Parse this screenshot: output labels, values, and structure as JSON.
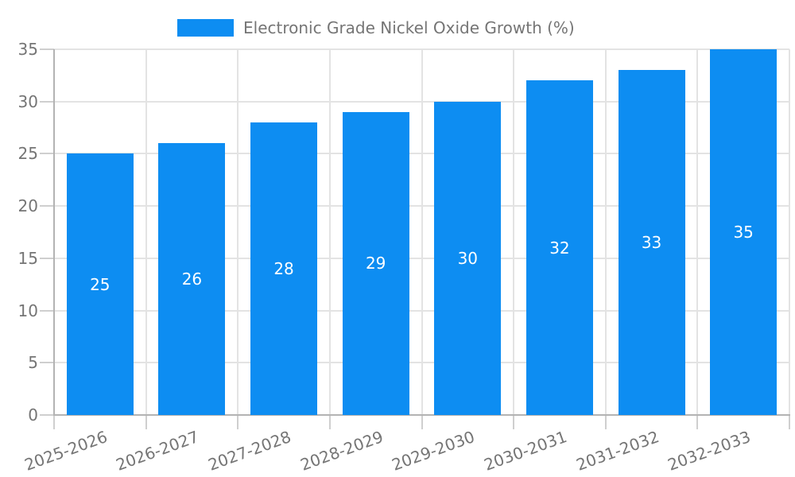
{
  "chart_data": {
    "type": "bar",
    "title": "Electronic Grade Nickel Oxide Growth (%)",
    "categories": [
      "2025-2026",
      "2026-2027",
      "2027-2028",
      "2028-2029",
      "2029-2030",
      "2030-2031",
      "2031-2032",
      "2032-2033"
    ],
    "values": [
      25,
      26,
      28,
      29,
      30,
      32,
      33,
      35
    ],
    "xlabel": "",
    "ylabel": "",
    "ylim": [
      0,
      35
    ],
    "yticks": [
      0,
      5,
      10,
      15,
      20,
      25,
      30,
      35
    ],
    "grid": true,
    "legend_position": "top-center",
    "colors": {
      "bar": "#0d8df2",
      "grid": "#e3e3e3",
      "axis": "#b3b3b3",
      "tick": "#cfcfcf",
      "text": "#757575",
      "value_label": "#ffffff",
      "background": "#ffffff"
    }
  }
}
